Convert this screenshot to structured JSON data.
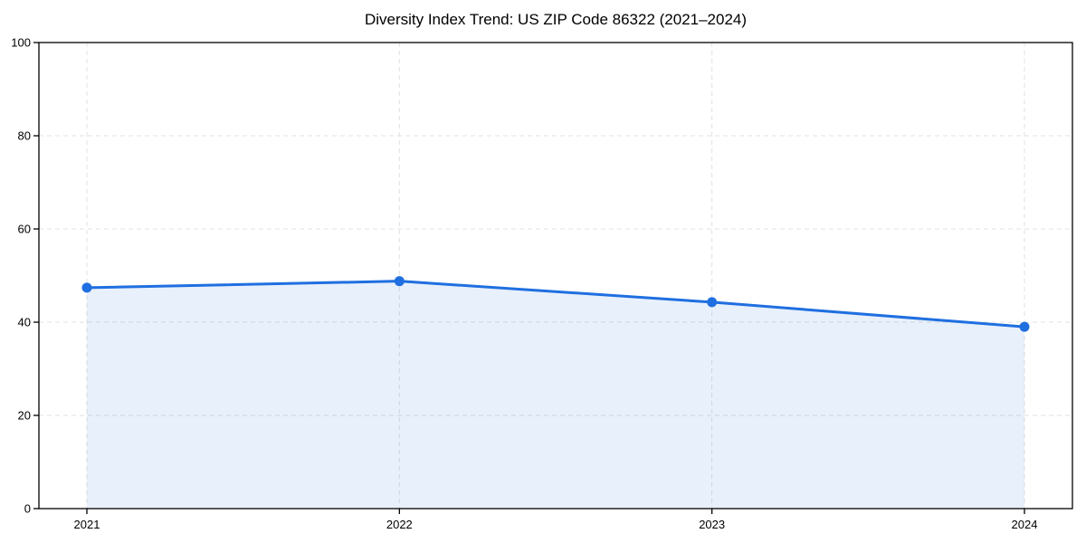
{
  "page": {
    "background": "#ffffff"
  },
  "chart_data": {
    "type": "line",
    "title": "Diversity Index Trend: US ZIP Code 86322 (2021–2024)",
    "x": [
      "2021",
      "2022",
      "2023",
      "2024"
    ],
    "series": [
      {
        "name": "Diversity Index",
        "values": [
          47.4,
          48.8,
          44.3,
          39.0
        ]
      }
    ],
    "xlabel": "",
    "ylabel": "",
    "ylim": [
      0,
      100
    ],
    "yticks": [
      0,
      20,
      40,
      60,
      80,
      100
    ],
    "grid": true,
    "grid_style": "dashed",
    "legend": "none",
    "area_fill": true,
    "marker": "circle",
    "fill_opacity": 0.1,
    "colors": {
      "line": "#1f6fe0",
      "marker": "#1f6fe0",
      "fill_under_line": "#1f6fe0",
      "grid": "#e0e0e0",
      "axis": "#000000",
      "text": "#000000",
      "background": "#ffffff"
    }
  }
}
